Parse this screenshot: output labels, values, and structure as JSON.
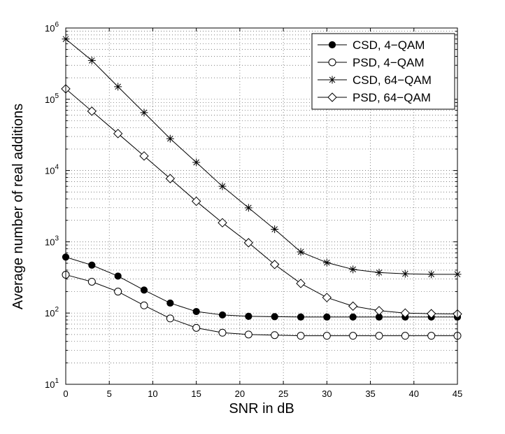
{
  "chart_data": {
    "type": "line",
    "title": "",
    "xlabel": "SNR in dB",
    "ylabel": "Average number of real additions",
    "yscale": "log",
    "xlim": [
      0,
      45
    ],
    "ylim": [
      10,
      1000000
    ],
    "grid": true,
    "legend_position": "top-right",
    "x": [
      0,
      3,
      6,
      9,
      12,
      15,
      18,
      21,
      24,
      27,
      30,
      33,
      36,
      39,
      42,
      45
    ],
    "x_ticks": [
      0,
      5,
      10,
      15,
      20,
      25,
      30,
      35,
      40,
      45
    ],
    "y_ticks": [
      {
        "value": 10,
        "base": "10",
        "exp": "1"
      },
      {
        "value": 100,
        "base": "10",
        "exp": "2"
      },
      {
        "value": 1000,
        "base": "10",
        "exp": "3"
      },
      {
        "value": 10000,
        "base": "10",
        "exp": "4"
      },
      {
        "value": 100000,
        "base": "10",
        "exp": "5"
      },
      {
        "value": 1000000,
        "base": "10",
        "exp": "6"
      }
    ],
    "series": [
      {
        "name": "CSD, 4−QAM",
        "marker": "filled-circle",
        "values": [
          610,
          470,
          330,
          210,
          138,
          105,
          94,
          90,
          89,
          88,
          88,
          88,
          88,
          88,
          88,
          88
        ]
      },
      {
        "name": "PSD, 4−QAM",
        "marker": "open-circle",
        "values": [
          345,
          275,
          200,
          128,
          84,
          62,
          53,
          50,
          49,
          48,
          48,
          48,
          48,
          48,
          48,
          48
        ]
      },
      {
        "name": "CSD, 64−QAM",
        "marker": "star",
        "values": [
          700000,
          350000,
          150000,
          65000,
          28000,
          13000,
          6000,
          3000,
          1500,
          720,
          510,
          410,
          370,
          355,
          350,
          350
        ]
      },
      {
        "name": "PSD, 64−QAM",
        "marker": "diamond",
        "values": [
          140000,
          68000,
          33000,
          16000,
          7700,
          3700,
          1850,
          970,
          480,
          260,
          165,
          125,
          108,
          100,
          98,
          97
        ]
      }
    ]
  }
}
